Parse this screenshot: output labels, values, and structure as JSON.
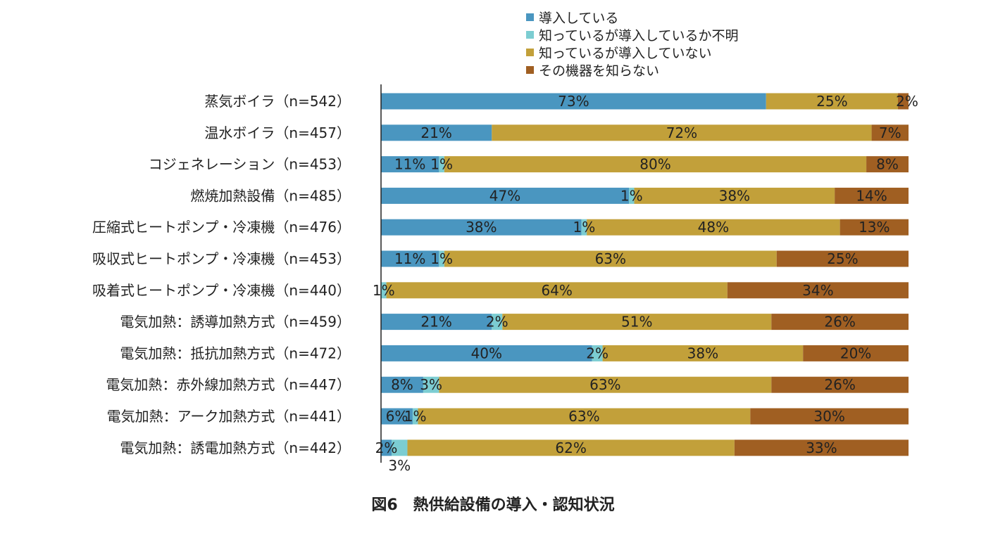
{
  "caption": "図6　熱供給設備の導入・認知状況",
  "colors": [
    "#4a96c0",
    "#7ccdd2",
    "#c2a03a",
    "#a05f22"
  ],
  "chart_data": {
    "type": "bar",
    "orientation": "horizontal",
    "stacked": true,
    "percent": true,
    "legend_position": "top",
    "xlim": [
      0,
      100
    ],
    "grid": false,
    "categories": [
      "蒸気ボイラ（n=542）",
      "温水ボイラ（n=457）",
      "コジェネレーション（n=453）",
      "燃焼加熱設備（n=485）",
      "圧縮式ヒートポンプ・冷凍機（n=476）",
      "吸収式ヒートポンプ・冷凍機（n=453）",
      "吸着式ヒートポンプ・冷凍機（n=440）",
      "電気加熱：誘導加熱方式（n=459）",
      "電気加熱：抵抗加熱方式（n=472）",
      "電気加熱：赤外線加熱方式（n=447）",
      "電気加熱：アーク加熱方式（n=441）",
      "電気加熱：誘電加熱方式（n=442）"
    ],
    "series": [
      {
        "name": "導入している",
        "values": [
          73,
          21,
          11,
          47,
          38,
          11,
          0,
          21,
          40,
          8,
          6,
          2
        ]
      },
      {
        "name": "知っているが導入しているか不明",
        "values": [
          0,
          0,
          1,
          1,
          1,
          1,
          1,
          2,
          2,
          3,
          1,
          3
        ]
      },
      {
        "name": "知っているが導入していない",
        "values": [
          25,
          72,
          80,
          38,
          48,
          63,
          64,
          51,
          38,
          63,
          63,
          62
        ]
      },
      {
        "name": "その機器を知らない",
        "values": [
          2,
          7,
          8,
          14,
          13,
          25,
          34,
          26,
          20,
          26,
          30,
          33
        ]
      }
    ]
  }
}
